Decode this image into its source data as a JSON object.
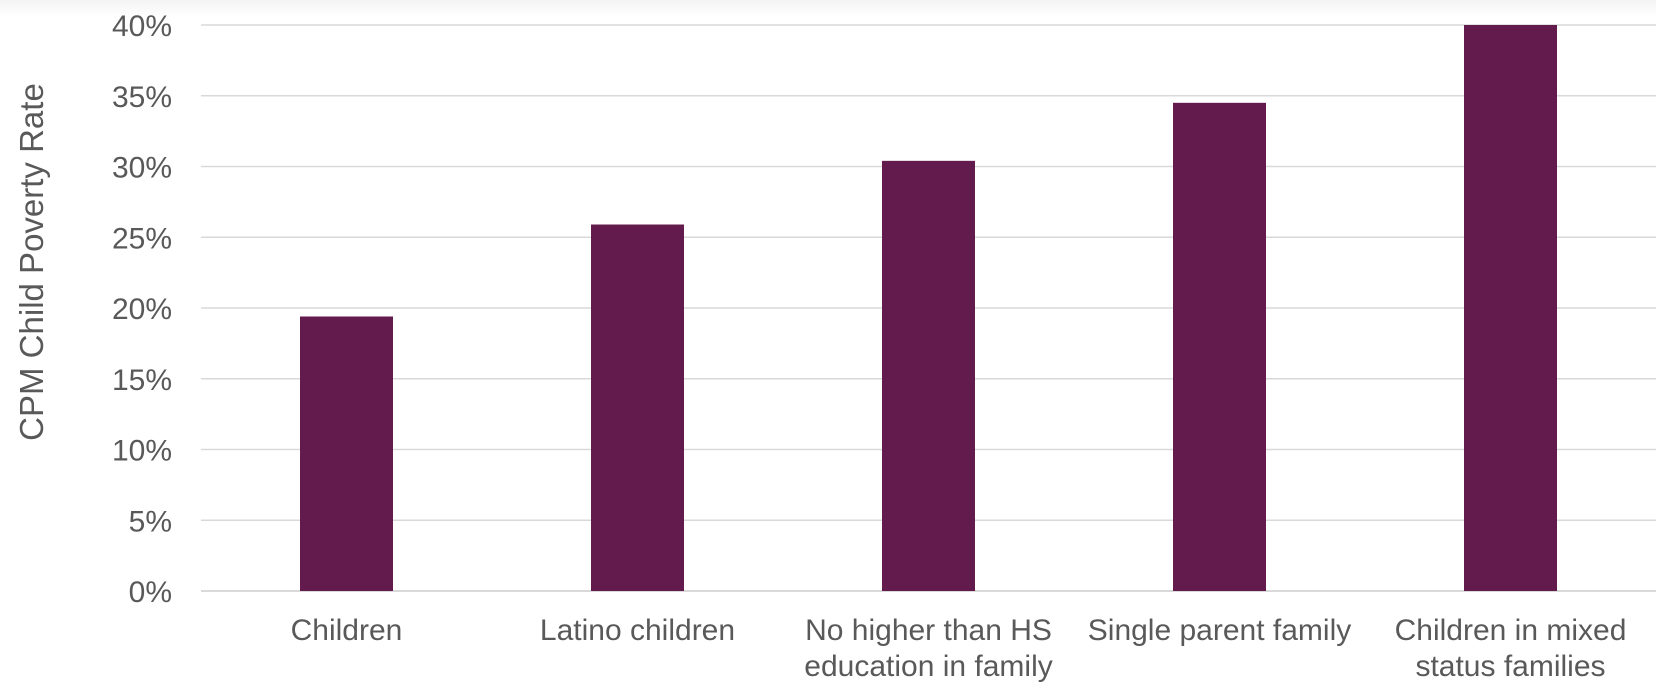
{
  "chart_data": {
    "type": "bar",
    "title": "",
    "xlabel": "",
    "ylabel": "CPM Child Poverty Rate",
    "categories": [
      [
        "Children"
      ],
      [
        "Latino children"
      ],
      [
        "No higher than HS",
        "education in family"
      ],
      [
        "Single parent family"
      ],
      [
        "Children in mixed",
        "status families"
      ]
    ],
    "values": [
      19.4,
      25.9,
      30.4,
      34.5,
      40.0
    ],
    "ylim": [
      0,
      40
    ],
    "ytick_step": 5,
    "ytick_suffix": "%",
    "grid": true,
    "legend": "none",
    "bar_color": "#621b4c",
    "grid_color": "#d9d9d9",
    "text_color": "#595959"
  }
}
